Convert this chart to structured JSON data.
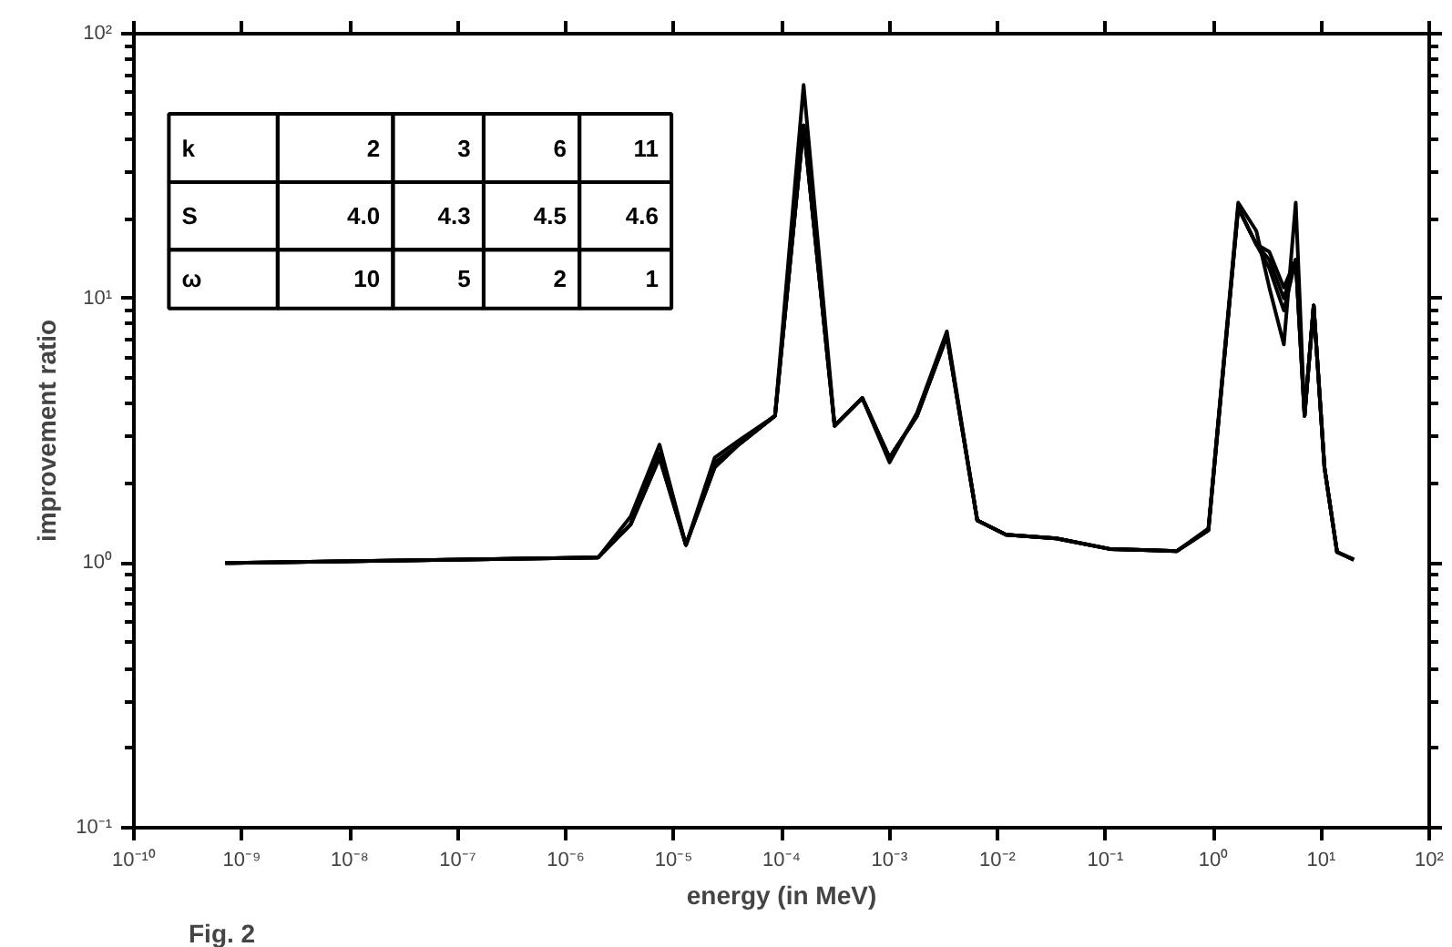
{
  "chart_data": {
    "type": "line",
    "xlabel": "energy (in MeV)",
    "ylabel": "improvement ratio",
    "log": "xy",
    "grid": false,
    "marker": "none",
    "line_style": "solid",
    "x": [
      7e-10,
      2e-06,
      4e-06,
      7.4e-06,
      1.3e-05,
      2.4e-05,
      4e-05,
      8.7e-05,
      0.00016,
      0.00031,
      0.00056,
      0.001,
      0.0018,
      0.0034,
      0.0065,
      0.012,
      0.035,
      0.11,
      0.46,
      0.9,
      1.7,
      2.5,
      3.3,
      4.5,
      5.8,
      7,
      8.5,
      10.7,
      14,
      20
    ],
    "series": [
      {
        "color": "#000000",
        "values": [
          1.0,
          1.05,
          1.5,
          2.8,
          1.17,
          2.5,
          2.9,
          3.6,
          64,
          3.3,
          4.2,
          2.4,
          3.7,
          7.5,
          1.45,
          1.28,
          1.24,
          1.13,
          1.11,
          1.35,
          23,
          18,
          11,
          6.7,
          23,
          3.6,
          9.4,
          2.3,
          1.1,
          1.03
        ]
      },
      {
        "color": "#000000",
        "values": [
          1.0,
          1.05,
          1.4,
          2.6,
          1.17,
          2.4,
          2.8,
          3.6,
          45,
          3.3,
          4.2,
          2.5,
          3.6,
          7.2,
          1.45,
          1.28,
          1.24,
          1.13,
          1.11,
          1.33,
          22,
          16,
          13,
          9,
          14,
          3.6,
          9.4,
          2.3,
          1.1,
          1.03
        ]
      },
      {
        "color": "#000000",
        "values": [
          1.0,
          1.05,
          1.4,
          2.5,
          1.17,
          2.3,
          2.8,
          3.6,
          45,
          3.3,
          4.2,
          2.5,
          3.6,
          7.2,
          1.45,
          1.28,
          1.24,
          1.13,
          1.11,
          1.33,
          22,
          16,
          15,
          11,
          14,
          3.6,
          9.4,
          2.3,
          1.1,
          1.03
        ]
      },
      {
        "color": "#000000",
        "values": [
          1.0,
          1.05,
          1.4,
          2.5,
          1.17,
          2.3,
          2.8,
          3.6,
          45,
          3.3,
          4.2,
          2.5,
          3.6,
          7.2,
          1.45,
          1.28,
          1.24,
          1.13,
          1.11,
          1.33,
          22,
          16,
          14,
          10,
          14,
          3.6,
          9.4,
          2.3,
          1.1,
          1.03
        ]
      }
    ],
    "xlim": [
      1e-10,
      100
    ],
    "xticks": [
      {
        "value": 1e-10,
        "label": "10⁻¹⁰"
      },
      {
        "value": 1e-09,
        "label": "10⁻⁹"
      },
      {
        "value": 1e-08,
        "label": "10⁻⁸"
      },
      {
        "value": 1e-07,
        "label": "10⁻⁷"
      },
      {
        "value": 1e-06,
        "label": "10⁻⁶"
      },
      {
        "value": 1e-05,
        "label": "10⁻⁵"
      },
      {
        "value": 0.0001,
        "label": "10⁻⁴"
      },
      {
        "value": 0.001,
        "label": "10⁻³"
      },
      {
        "value": 0.01,
        "label": "10⁻²"
      },
      {
        "value": 0.1,
        "label": "10⁻¹"
      },
      {
        "value": 1,
        "label": "10⁰"
      },
      {
        "value": 10,
        "label": "10¹"
      },
      {
        "value": 100,
        "label": "10²"
      }
    ],
    "ylim": [
      0.1,
      100
    ],
    "yticks": [
      {
        "value": 0.1,
        "label": "10⁻¹"
      },
      {
        "value": 1,
        "label": "10⁰"
      },
      {
        "value": 10,
        "label": "10¹"
      },
      {
        "value": 100,
        "label": "10²"
      }
    ],
    "annotations": [
      "k",
      "2",
      "3",
      "6",
      "11",
      "S",
      "4.0",
      "4.3",
      "4.5",
      "4.6",
      "ω",
      "10",
      "5",
      "2",
      "1",
      "Fig. 2"
    ]
  }
}
